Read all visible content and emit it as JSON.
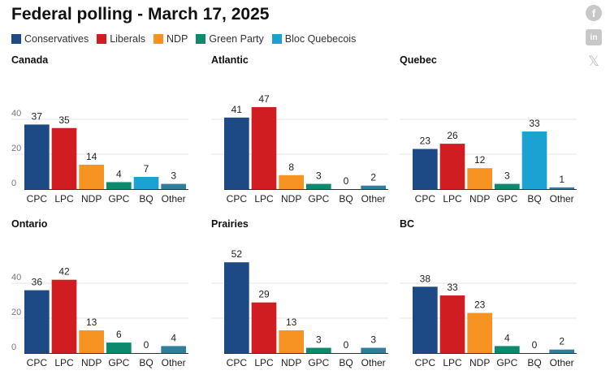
{
  "title": "Federal polling - March 17, 2025",
  "legend": [
    {
      "label": "Conservatives",
      "color": "#1d4a84"
    },
    {
      "label": "Liberals",
      "color": "#d01d22"
    },
    {
      "label": "NDP",
      "color": "#f79322"
    },
    {
      "label": "Green Party",
      "color": "#0c8a6d"
    },
    {
      "label": "Bloc Quebecois",
      "color": "#1ba2d3"
    }
  ],
  "social": {
    "facebook_icon": "f",
    "linkedin_icon": "in",
    "x_icon": "𝕏"
  },
  "chart_data": [
    {
      "type": "bar",
      "title": "Canada",
      "categories": [
        "CPC",
        "LPC",
        "NDP",
        "GPC",
        "BQ",
        "Other"
      ],
      "values": [
        37,
        35,
        14,
        4,
        7,
        3
      ],
      "yticks": [
        0,
        20,
        40
      ],
      "ylim": [
        0,
        55
      ],
      "grid": true
    },
    {
      "type": "bar",
      "title": "Atlantic",
      "categories": [
        "CPC",
        "LPC",
        "NDP",
        "GPC",
        "BQ",
        "Other"
      ],
      "values": [
        41,
        47,
        8,
        3,
        0,
        2
      ],
      "yticks": [],
      "ylim": [
        0,
        55
      ],
      "grid": true
    },
    {
      "type": "bar",
      "title": "Quebec",
      "categories": [
        "CPC",
        "LPC",
        "NDP",
        "GPC",
        "BQ",
        "Other"
      ],
      "values": [
        23,
        26,
        12,
        3,
        33,
        1
      ],
      "yticks": [],
      "ylim": [
        0,
        55
      ],
      "grid": true
    },
    {
      "type": "bar",
      "title": "Ontario",
      "categories": [
        "CPC",
        "LPC",
        "NDP",
        "GPC",
        "BQ",
        "Other"
      ],
      "values": [
        36,
        42,
        13,
        6,
        0,
        4
      ],
      "yticks": [
        0,
        20,
        40
      ],
      "ylim": [
        0,
        55
      ],
      "grid": true
    },
    {
      "type": "bar",
      "title": "Prairies",
      "categories": [
        "CPC",
        "LPC",
        "NDP",
        "GPC",
        "BQ",
        "Other"
      ],
      "values": [
        52,
        29,
        13,
        3,
        0,
        3
      ],
      "yticks": [],
      "ylim": [
        0,
        55
      ],
      "grid": true
    },
    {
      "type": "bar",
      "title": "BC",
      "categories": [
        "CPC",
        "LPC",
        "NDP",
        "GPC",
        "BQ",
        "Other"
      ],
      "values": [
        38,
        33,
        23,
        4,
        0,
        2
      ],
      "yticks": [],
      "ylim": [
        0,
        55
      ],
      "grid": true
    }
  ],
  "bar_colors": [
    "#1d4a84",
    "#d01d22",
    "#f79322",
    "#0c8a6d",
    "#1ba2d3",
    "#2f7f9c"
  ]
}
